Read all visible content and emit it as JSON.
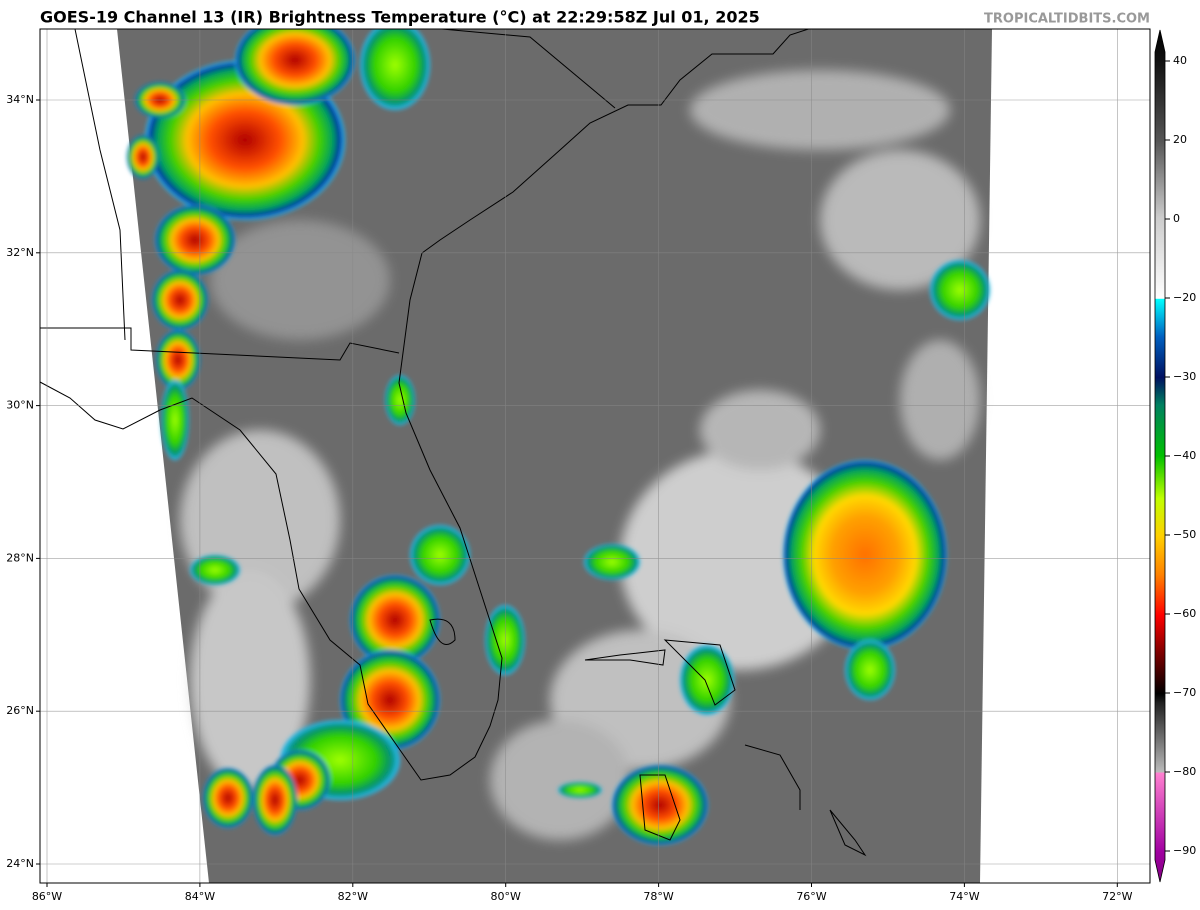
{
  "header": {
    "title": "GOES-19 Channel 13 (IR) Brightness Temperature (°C) at 22:29:58Z Jul 01, 2025",
    "source": "TROPICALTIDBITS.COM"
  },
  "map": {
    "latitude_labels": [
      "34°N",
      "32°N",
      "30°N",
      "28°N",
      "26°N",
      "24°N"
    ],
    "longitude_labels": [
      "86°W",
      "84°W",
      "82°W",
      "80°W",
      "78°W",
      "76°W",
      "74°W",
      "72°W"
    ]
  },
  "colorbar": {
    "ticks": [
      40,
      20,
      0,
      {
        "value": -20,
        "label": "−20"
      },
      {
        "value": -30,
        "label": "−30"
      },
      {
        "value": -40,
        "label": "−40"
      },
      {
        "value": -50,
        "label": "−50"
      },
      {
        "value": -60,
        "label": "−60"
      },
      {
        "value": -70,
        "label": "−70"
      },
      {
        "value": -80,
        "label": "−80"
      },
      {
        "value": -90,
        "label": "−90"
      }
    ]
  }
}
